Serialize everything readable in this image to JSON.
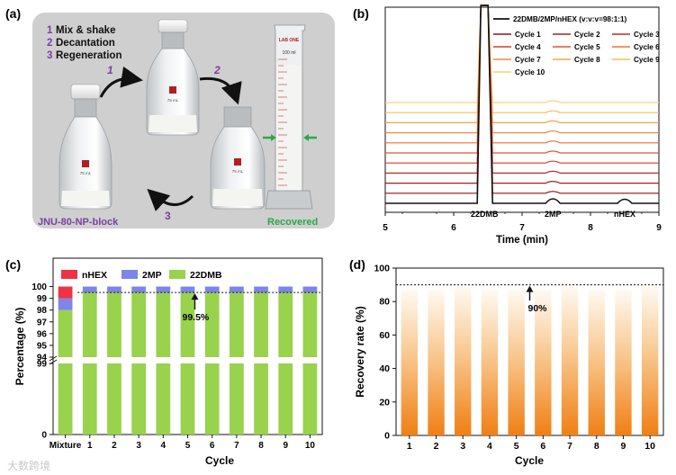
{
  "panels": {
    "a": {
      "label": "(a)",
      "steps": [
        {
          "num": "1",
          "text": "Mix & shake"
        },
        {
          "num": "2",
          "text": "Decantation"
        },
        {
          "num": "3",
          "text": "Regeneration"
        }
      ],
      "arrow_numbers": [
        "1",
        "2",
        "3"
      ],
      "left_caption": "JNU-80-NP-block",
      "right_caption": "Recovered",
      "bottle_volume": "75 mL",
      "cylinder_brand": "LAB ONE",
      "cylinder_volume": "100 ml"
    },
    "b": {
      "label": "(b)"
    },
    "c": {
      "label": "(c)"
    },
    "d": {
      "label": "(d)"
    }
  },
  "colors": {
    "panel_a_bg": "#cfcfcf",
    "purple": "#7a3fa0",
    "green": "#2aa84a",
    "nhex": "#ee3344",
    "2mp": "#7d86e8",
    "22dmb": "#99d24c",
    "orange_top": "#fffaf2",
    "orange_bottom": "#f07f14"
  },
  "watermark": "大数跨境",
  "chart_data": [
    {
      "id": "b",
      "type": "line",
      "title": "",
      "xlabel": "Time (min)",
      "ylabel": "",
      "xlim": [
        5,
        9
      ],
      "xticks": [
        5,
        6,
        7,
        8,
        9
      ],
      "peaks": [
        {
          "label": "22DMB",
          "x": 6.45
        },
        {
          "label": "2MP",
          "x": 7.45
        },
        {
          "label": "nHEX",
          "x": 8.5
        }
      ],
      "series": [
        {
          "name": "22DMB/2MP/nHEX (v:v:v=98:1:1)",
          "color": "#111111",
          "offset": 0,
          "peak_2mp": 1,
          "peak_nhex": 1
        },
        {
          "name": "Cycle 1",
          "color": "#8b1515",
          "offset": 1
        },
        {
          "name": "Cycle 2",
          "color": "#a52020",
          "offset": 2
        },
        {
          "name": "Cycle 3",
          "color": "#bf2a25",
          "offset": 3
        },
        {
          "name": "Cycle 4",
          "color": "#d2402a",
          "offset": 4
        },
        {
          "name": "Cycle 5",
          "color": "#e05630",
          "offset": 5
        },
        {
          "name": "Cycle 6",
          "color": "#ea7038",
          "offset": 6
        },
        {
          "name": "Cycle 7",
          "color": "#f08a40",
          "offset": 7
        },
        {
          "name": "Cycle 8",
          "color": "#f3a44a",
          "offset": 8
        },
        {
          "name": "Cycle 9",
          "color": "#f5bd58",
          "offset": 9
        },
        {
          "name": "Cycle 10",
          "color": "#f7d476",
          "offset": 10
        }
      ],
      "legend": {
        "header": "22DMB/2MP/nHEX (v:v:v=98:1:1)",
        "items": [
          "Cycle 1",
          "Cycle 2",
          "Cycle 3",
          "Cycle 4",
          "Cycle 5",
          "Cycle 6",
          "Cycle 7",
          "Cycle 8",
          "Cycle 9",
          "Cycle 10"
        ]
      }
    },
    {
      "id": "c",
      "type": "bar",
      "stacked": true,
      "title": "",
      "xlabel": "Cycle",
      "ylabel": "Percentage (%)",
      "categories": [
        "Mixture",
        "1",
        "2",
        "3",
        "4",
        "5",
        "6",
        "7",
        "8",
        "9",
        "10"
      ],
      "series": [
        {
          "name": "22DMB",
          "color": "#99d24c",
          "values": [
            98,
            99.5,
            99.5,
            99.5,
            99.5,
            99.5,
            99.5,
            99.5,
            99.5,
            99.5,
            99.5
          ]
        },
        {
          "name": "2MP",
          "color": "#7d86e8",
          "values": [
            1,
            0.5,
            0.5,
            0.5,
            0.5,
            0.5,
            0.5,
            0.5,
            0.5,
            0.5,
            0.5
          ]
        },
        {
          "name": "nHEX",
          "color": "#ee3344",
          "values": [
            1,
            0,
            0,
            0,
            0,
            0,
            0,
            0,
            0,
            0,
            0
          ]
        }
      ],
      "legend": [
        "nHEX",
        "2MP",
        "22DMB"
      ],
      "yaxis_break": true,
      "upper_yticks": [
        "100",
        "99",
        "98",
        "97",
        "96",
        "95",
        "94"
      ],
      "upper_ylim": [
        93.5,
        100.5
      ],
      "lower_yticks": [
        "99",
        "0"
      ],
      "annotation": {
        "text": "99.5%",
        "value": 99.5
      },
      "reference_line": 99.5
    },
    {
      "id": "d",
      "type": "bar",
      "title": "",
      "xlabel": "Cycle",
      "ylabel": "Recovery rate (%)",
      "categories": [
        "1",
        "2",
        "3",
        "4",
        "5",
        "6",
        "7",
        "8",
        "9",
        "10"
      ],
      "values": [
        87,
        87,
        89,
        87,
        87,
        87,
        89,
        87,
        87,
        89
      ],
      "ylim": [
        0,
        100
      ],
      "yticks": [
        "0",
        "20",
        "40",
        "60",
        "80",
        "100"
      ],
      "annotation": {
        "text": "90%",
        "value": 90
      },
      "reference_line": 90
    }
  ]
}
